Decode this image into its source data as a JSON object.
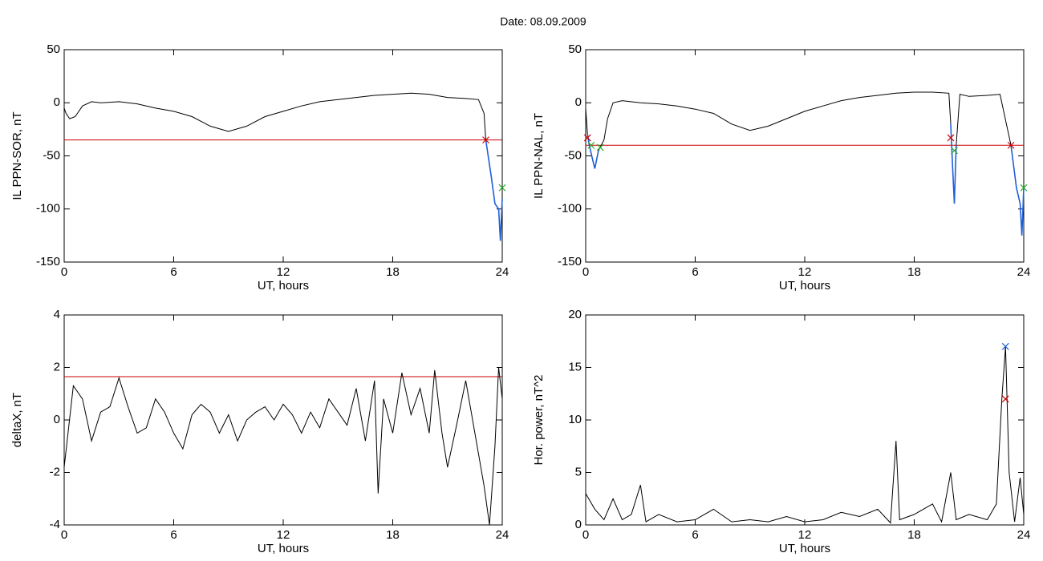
{
  "title": "Date:  08.09.2009",
  "chart_data": [
    {
      "type": "line",
      "xlabel": "UT, hours",
      "ylabel": "IL PPN-SOR, nT",
      "xlim": [
        0,
        24
      ],
      "xticks": [
        0,
        6,
        12,
        18,
        24
      ],
      "ylim": [
        -150,
        50
      ],
      "yticks": [
        -150,
        -100,
        -50,
        0,
        50
      ],
      "series": [
        {
          "color": "#000000",
          "x": [
            0,
            0.1,
            0.3,
            0.6,
            1,
            1.5,
            2,
            3,
            4,
            5,
            6,
            7,
            8,
            9,
            10,
            11,
            12,
            13,
            14,
            15,
            16,
            17,
            18,
            19,
            20,
            21,
            22,
            22.7,
            23,
            23.1
          ],
          "values": [
            -5,
            -10,
            -15,
            -13,
            -3,
            1,
            0,
            1,
            -1,
            -5,
            -8,
            -13,
            -22,
            -27,
            -22,
            -13,
            -8,
            -3,
            1,
            3,
            5,
            7,
            8,
            9,
            8,
            5,
            4,
            3,
            -10,
            -35
          ]
        },
        {
          "color": "#1f5fd6",
          "x": [
            23.1,
            23.4,
            23.6,
            23.8,
            23.9,
            24
          ],
          "values": [
            -35,
            -70,
            -95,
            -100,
            -130,
            -90
          ]
        }
      ],
      "hlines": [
        {
          "value": -35,
          "color": "#cc0000"
        }
      ],
      "markers": [
        {
          "color": "#cc0000",
          "x": [
            23.1
          ],
          "values": [
            -35
          ]
        },
        {
          "color": "#22aa22",
          "x": [
            24
          ],
          "values": [
            -80
          ]
        }
      ]
    },
    {
      "type": "line",
      "xlabel": "UT, hours",
      "ylabel": "IL PPN-NAL, nT",
      "xlim": [
        0,
        24
      ],
      "xticks": [
        0,
        6,
        12,
        18,
        24
      ],
      "ylim": [
        -150,
        50
      ],
      "yticks": [
        -150,
        -100,
        -50,
        0,
        50
      ],
      "series": [
        {
          "color": "#000000",
          "x": [
            0,
            0.1
          ],
          "values": [
            -5,
            -30
          ]
        },
        {
          "color": "#1f5fd6",
          "x": [
            0.1,
            0.2,
            0.4,
            0.5,
            0.7
          ],
          "values": [
            -30,
            -40,
            -55,
            -62,
            -45
          ]
        },
        {
          "color": "#000000",
          "x": [
            0.7,
            1,
            1.2,
            1.5,
            2,
            3,
            4,
            5,
            6,
            7,
            8,
            9,
            10,
            11,
            12,
            13,
            14,
            15,
            16,
            17,
            18,
            19,
            19.9,
            20
          ],
          "values": [
            -45,
            -35,
            -15,
            0,
            2,
            0,
            -1,
            -3,
            -6,
            -10,
            -20,
            -26,
            -22,
            -15,
            -8,
            -3,
            2,
            5,
            7,
            9,
            10,
            10,
            9,
            -20
          ]
        },
        {
          "color": "#1f5fd6",
          "x": [
            20,
            20.1,
            20.2,
            20.3
          ],
          "values": [
            -20,
            -60,
            -95,
            -40
          ]
        },
        {
          "color": "#000000",
          "x": [
            20.3,
            20.5,
            21,
            22,
            22.7,
            23.3
          ],
          "values": [
            -40,
            8,
            6,
            7,
            8,
            -40
          ]
        },
        {
          "color": "#1f5fd6",
          "x": [
            23.3,
            23.6,
            23.8,
            23.9,
            24
          ],
          "values": [
            -40,
            -80,
            -95,
            -125,
            -80
          ]
        }
      ],
      "hlines": [
        {
          "value": -40,
          "color": "#cc0000"
        }
      ],
      "markers": [
        {
          "color": "#cc0000",
          "x": [
            0.1,
            20,
            23.3
          ],
          "values": [
            -33,
            -33,
            -40
          ]
        },
        {
          "color": "#22aa22",
          "x": [
            0.3,
            0.8,
            20.2,
            24
          ],
          "values": [
            -40,
            -42,
            -45,
            -80
          ]
        }
      ]
    },
    {
      "type": "line",
      "xlabel": "UT, hours",
      "ylabel": "deltaX, nT",
      "xlim": [
        0,
        24
      ],
      "xticks": [
        0,
        6,
        12,
        18,
        24
      ],
      "ylim": [
        -4,
        4
      ],
      "yticks": [
        -4,
        -2,
        0,
        2,
        4
      ],
      "series": [
        {
          "color": "#000000",
          "x": [
            0,
            0.5,
            1,
            1.5,
            2,
            2.5,
            3,
            3.5,
            4,
            4.5,
            5,
            5.5,
            6,
            6.5,
            7,
            7.5,
            8,
            8.5,
            9,
            9.5,
            10,
            10.5,
            11,
            11.5,
            12,
            12.5,
            13,
            13.5,
            14,
            14.5,
            15,
            15.5,
            16,
            16.5,
            17,
            17.2,
            17.5,
            18,
            18.5,
            19,
            19.5,
            20,
            20.3,
            20.7,
            21,
            21.5,
            22,
            22.5,
            23,
            23.3,
            23.6,
            23.8,
            24
          ],
          "values": [
            -1.8,
            1.3,
            0.8,
            -0.8,
            0.3,
            0.5,
            1.6,
            0.5,
            -0.5,
            -0.3,
            0.8,
            0.3,
            -0.5,
            -1.1,
            0.2,
            0.6,
            0.3,
            -0.5,
            0.2,
            -0.8,
            0,
            0.3,
            0.5,
            0,
            0.6,
            0.2,
            -0.5,
            0.3,
            -0.3,
            0.8,
            0.3,
            -0.2,
            1.2,
            -0.8,
            1.5,
            -2.8,
            0.8,
            -0.5,
            1.8,
            0.2,
            1.2,
            -0.5,
            1.9,
            -0.5,
            -1.8,
            -0.2,
            1.5,
            -0.5,
            -2.5,
            -4,
            -1,
            2,
            0.8
          ]
        }
      ],
      "hlines": [
        {
          "value": 1.65,
          "color": "#cc0000"
        }
      ],
      "markers": []
    },
    {
      "type": "line",
      "xlabel": "UT, hours",
      "ylabel": "Hor. power, nT^2",
      "xlim": [
        0,
        24
      ],
      "xticks": [
        0,
        6,
        12,
        18,
        24
      ],
      "ylim": [
        0,
        20
      ],
      "yticks": [
        0,
        5,
        10,
        15,
        20
      ],
      "series": [
        {
          "color": "#000000",
          "x": [
            0,
            0.5,
            1,
            1.5,
            2,
            2.5,
            3,
            3.3,
            4,
            5,
            6,
            7,
            8,
            9,
            10,
            11,
            12,
            13,
            14,
            15,
            16,
            16.7,
            17,
            17.2,
            18,
            19,
            19.5,
            20,
            20.3,
            21,
            22,
            22.5,
            22.8,
            23,
            23.2,
            23.5,
            23.8,
            24
          ],
          "values": [
            3,
            1.5,
            0.5,
            2.5,
            0.5,
            1,
            3.8,
            0.3,
            1,
            0.3,
            0.5,
            1.5,
            0.3,
            0.5,
            0.3,
            0.8,
            0.3,
            0.5,
            1.2,
            0.8,
            1.5,
            0.2,
            8,
            0.5,
            1,
            2,
            0.3,
            5,
            0.5,
            1,
            0.5,
            2,
            12,
            17,
            5,
            0.3,
            4.5,
            1
          ]
        }
      ],
      "hlines": [],
      "markers": [
        {
          "color": "#1f5fd6",
          "x": [
            23
          ],
          "values": [
            17
          ]
        },
        {
          "color": "#cc0000",
          "x": [
            23
          ],
          "values": [
            12
          ]
        }
      ]
    }
  ]
}
